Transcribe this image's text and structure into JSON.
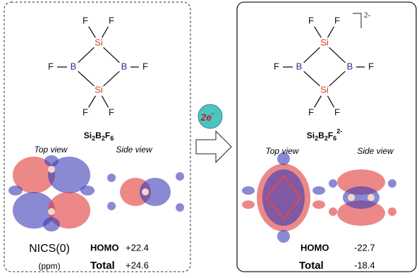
{
  "left": {
    "atoms": [
      "F",
      "F",
      "Si",
      "F",
      "B",
      "B",
      "F",
      "Si",
      "F",
      "F"
    ],
    "formula": [
      "Si",
      "2",
      "B",
      "2",
      "F",
      "6"
    ],
    "top_view": "Top view",
    "side_view": "Side view",
    "nics": "NICS(0)",
    "unit": "(ppm)",
    "homo_label": "HOMO",
    "homo": "+22.4",
    "total_label": "Total",
    "total": "+24.6"
  },
  "reagent": {
    "text": "2e",
    "sup": "-"
  },
  "right": {
    "atoms": [
      "F",
      "F",
      "Si",
      "F",
      "B",
      "B",
      "F",
      "Si",
      "F",
      "F"
    ],
    "charge": "2-",
    "formula": [
      "Si",
      "2",
      "B",
      "2",
      "F",
      "6"
    ],
    "formula_sup": "2-",
    "top_view": "Top view",
    "side_view": "Side view",
    "homo_label": "HOMO",
    "homo": "-22.7",
    "total_label": "Total",
    "total": "-18.4"
  }
}
